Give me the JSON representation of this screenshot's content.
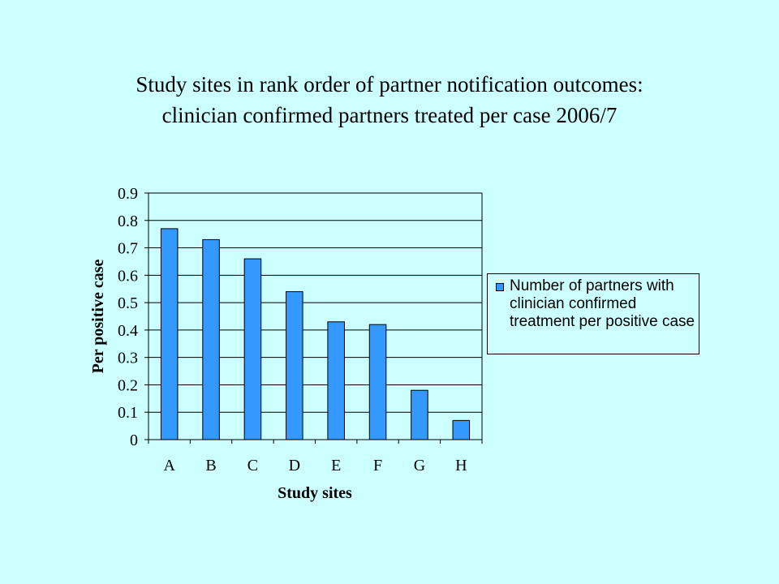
{
  "slide": {
    "background": "#CCFFFF",
    "title_lines": [
      "Study sites in rank order of partner notification outcomes:",
      "clinician confirmed partners treated per case 2006/7"
    ]
  },
  "chart_data": {
    "type": "bar",
    "title": "",
    "xlabel": "Study sites",
    "ylabel": "Per positive case",
    "categories": [
      "A",
      "B",
      "C",
      "D",
      "E",
      "F",
      "G",
      "H"
    ],
    "series": [
      {
        "name": "Number of partners with clinician confirmed treatment per positive case",
        "values": [
          0.77,
          0.73,
          0.66,
          0.54,
          0.43,
          0.42,
          0.18,
          0.07
        ],
        "color": "#3399FF"
      }
    ],
    "ylim": [
      0,
      0.9
    ],
    "yticks": [
      "0",
      "0.1",
      "0.2",
      "0.3",
      "0.4",
      "0.5",
      "0.6",
      "0.7",
      "0.8",
      "0.9"
    ],
    "grid": true,
    "legend_position": "right"
  }
}
